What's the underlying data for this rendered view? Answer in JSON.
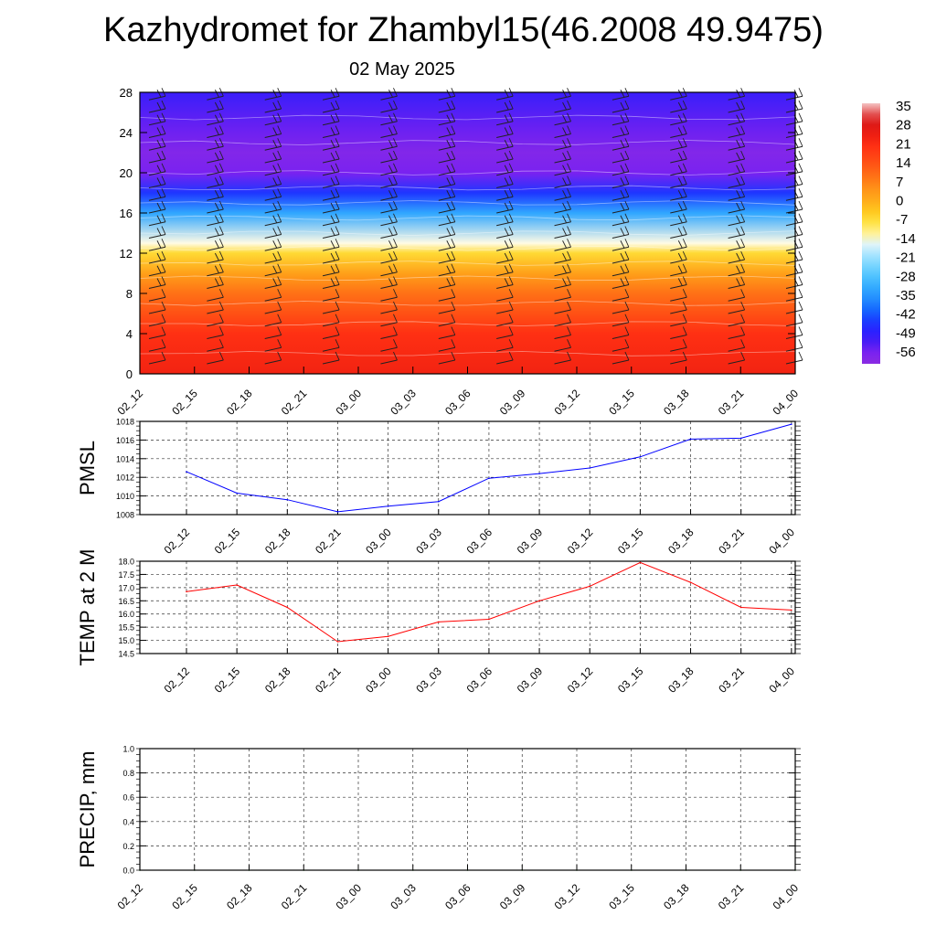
{
  "page": {
    "title": "Kazhydromet for Zhambyl15(46.2008 49.9475)",
    "subtitle": "02 May 2025"
  },
  "time_labels_main": [
    "02_12",
    "02_15",
    "02_18",
    "02_21",
    "03_00",
    "03_03",
    "03_06",
    "03_09",
    "03_12",
    "03_15",
    "03_18",
    "03_21",
    "04_00"
  ],
  "time_labels_mid": [
    "02_12",
    "02_15",
    "02_18",
    "02_21",
    "03_00",
    "03_03",
    "03_06",
    "03_09",
    "03_12",
    "03_15",
    "03_18",
    "03_21",
    "04_00"
  ],
  "time_labels_precip": [
    "02_12",
    "02_15",
    "02_18",
    "02_21",
    "03_00",
    "03_03",
    "03_06",
    "03_09",
    "03_12",
    "03_15",
    "03_18",
    "03_21",
    "04_00"
  ],
  "colors": {
    "pmsl_line": "#0000ff",
    "temp_line": "#ff0000",
    "precip_line": "#006400",
    "grid": "#555555"
  },
  "chart_data": [
    {
      "type": "heatmap",
      "description_free": true,
      "ylim": [
        0,
        28
      ],
      "yticks": [
        0,
        4,
        8,
        12,
        16,
        20,
        24,
        28
      ],
      "x": [
        "02_12",
        "02_15",
        "02_18",
        "02_21",
        "03_00",
        "03_03",
        "03_06",
        "03_09",
        "03_12",
        "03_15",
        "03_18",
        "03_21",
        "04_00"
      ],
      "colorbar": {
        "labels": [
          "35",
          "28",
          "21",
          "14",
          "7",
          "0",
          "-7",
          "-14",
          "-21",
          "-28",
          "-35",
          "-42",
          "-49",
          "-56"
        ],
        "range": [
          -60,
          37
        ]
      },
      "temperature_profile": [
        {
          "height": 0,
          "value": 24
        },
        {
          "height": 4,
          "value": 21
        },
        {
          "height": 8,
          "value": 10
        },
        {
          "height": 10,
          "value": 3
        },
        {
          "height": 12,
          "value": -6
        },
        {
          "height": 13,
          "value": -14
        },
        {
          "height": 16,
          "value": -32
        },
        {
          "height": 18,
          "value": -45
        },
        {
          "height": 20,
          "value": -56
        },
        {
          "height": 22,
          "value": -58
        },
        {
          "height": 24,
          "value": -55
        },
        {
          "height": 28,
          "value": -50
        }
      ]
    },
    {
      "type": "line",
      "ylabel": "PMSL",
      "ylim": [
        1008,
        1018
      ],
      "yticks": [
        "1008",
        "1010",
        "1012",
        "1014",
        "1016",
        "1018"
      ],
      "categories": [
        "02_12",
        "02_15",
        "02_18",
        "02_21",
        "03_00",
        "03_03",
        "03_06",
        "03_09",
        "03_12",
        "03_15",
        "03_18",
        "03_21",
        "04_00"
      ],
      "values": [
        1012.6,
        1010.3,
        1009.6,
        1008.3,
        1008.9,
        1009.4,
        1011.9,
        1012.4,
        1013.0,
        1014.2,
        1016.1,
        1016.2,
        1017.7
      ]
    },
    {
      "type": "line",
      "ylabel": "TEMP at 2 M",
      "ylim": [
        14.5,
        18.0
      ],
      "yticks": [
        "14.5",
        "15.0",
        "15.5",
        "16.0",
        "16.5",
        "17.0",
        "17.5",
        "18.0"
      ],
      "categories": [
        "02_12",
        "02_15",
        "02_18",
        "02_21",
        "03_00",
        "03_03",
        "03_06",
        "03_09",
        "03_12",
        "03_15",
        "03_18",
        "03_21",
        "04_00"
      ],
      "values": [
        16.85,
        17.1,
        16.25,
        14.95,
        15.15,
        15.7,
        15.8,
        16.5,
        17.05,
        17.95,
        17.2,
        16.25,
        16.15
      ]
    },
    {
      "type": "line",
      "ylabel": "PRECIP, mm",
      "ylim": [
        0.0,
        1.0
      ],
      "yticks": [
        "0.0",
        "0.2",
        "0.4",
        "0.6",
        "0.8",
        "1.0"
      ],
      "categories": [
        "02_12",
        "02_15",
        "02_18",
        "02_21",
        "03_00",
        "03_03",
        "03_06",
        "03_09",
        "03_12",
        "03_15",
        "03_18",
        "03_21",
        "04_00"
      ],
      "values": [
        0,
        0,
        0,
        0,
        0,
        0,
        0,
        0,
        0,
        0,
        0,
        0,
        0
      ]
    }
  ]
}
